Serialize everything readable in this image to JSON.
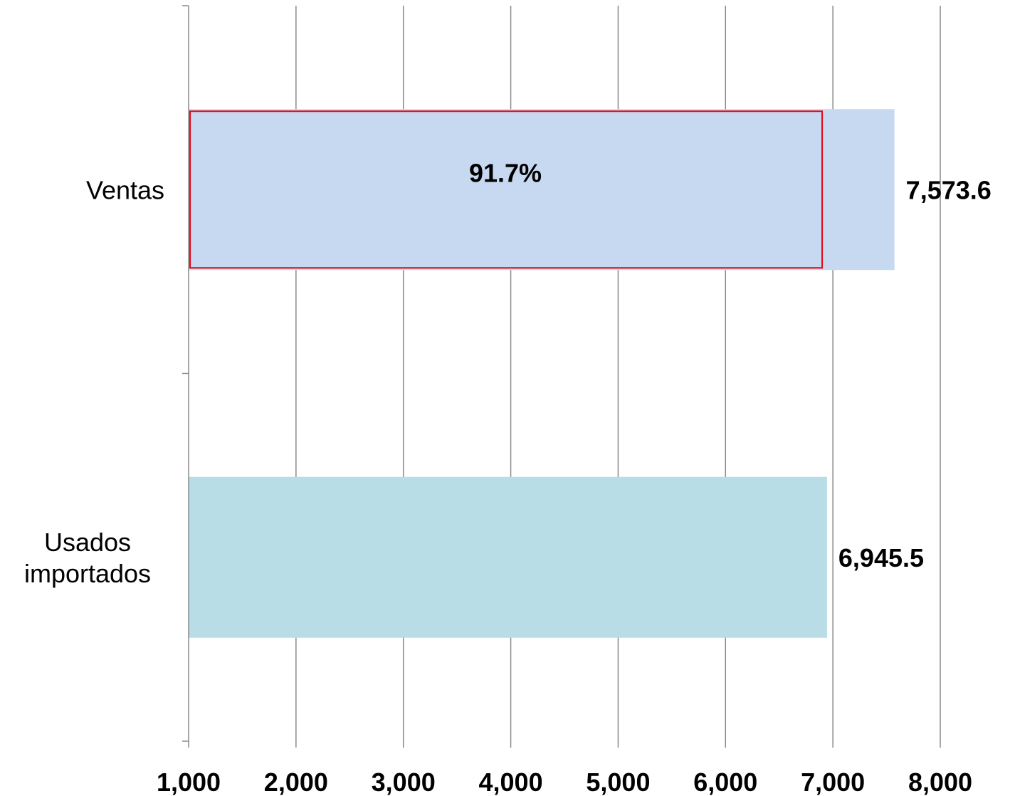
{
  "chart_data": {
    "type": "bar",
    "orientation": "horizontal",
    "title": "",
    "xlabel": "",
    "ylabel": "",
    "categories": [
      [
        "Ventas"
      ],
      [
        "Usados",
        "importados"
      ]
    ],
    "values": [
      7573.6,
      6945.5
    ],
    "value_labels": [
      "7,573.6",
      "6,945.5"
    ],
    "bar_colors": [
      "#c7d9f0",
      "#b8dde7"
    ],
    "xlim": [
      1000,
      8000
    ],
    "ticks": [
      1000,
      2000,
      3000,
      4000,
      5000,
      6000,
      7000,
      8000
    ],
    "tick_labels": [
      "1,000",
      "2,000",
      "3,000",
      "4,000",
      "5,000",
      "6,000",
      "7,000",
      "8,000"
    ],
    "grid": true,
    "annotation": {
      "label": "91.7%",
      "category_index": 0,
      "value": 6900,
      "outline_color": "#e30613"
    }
  }
}
